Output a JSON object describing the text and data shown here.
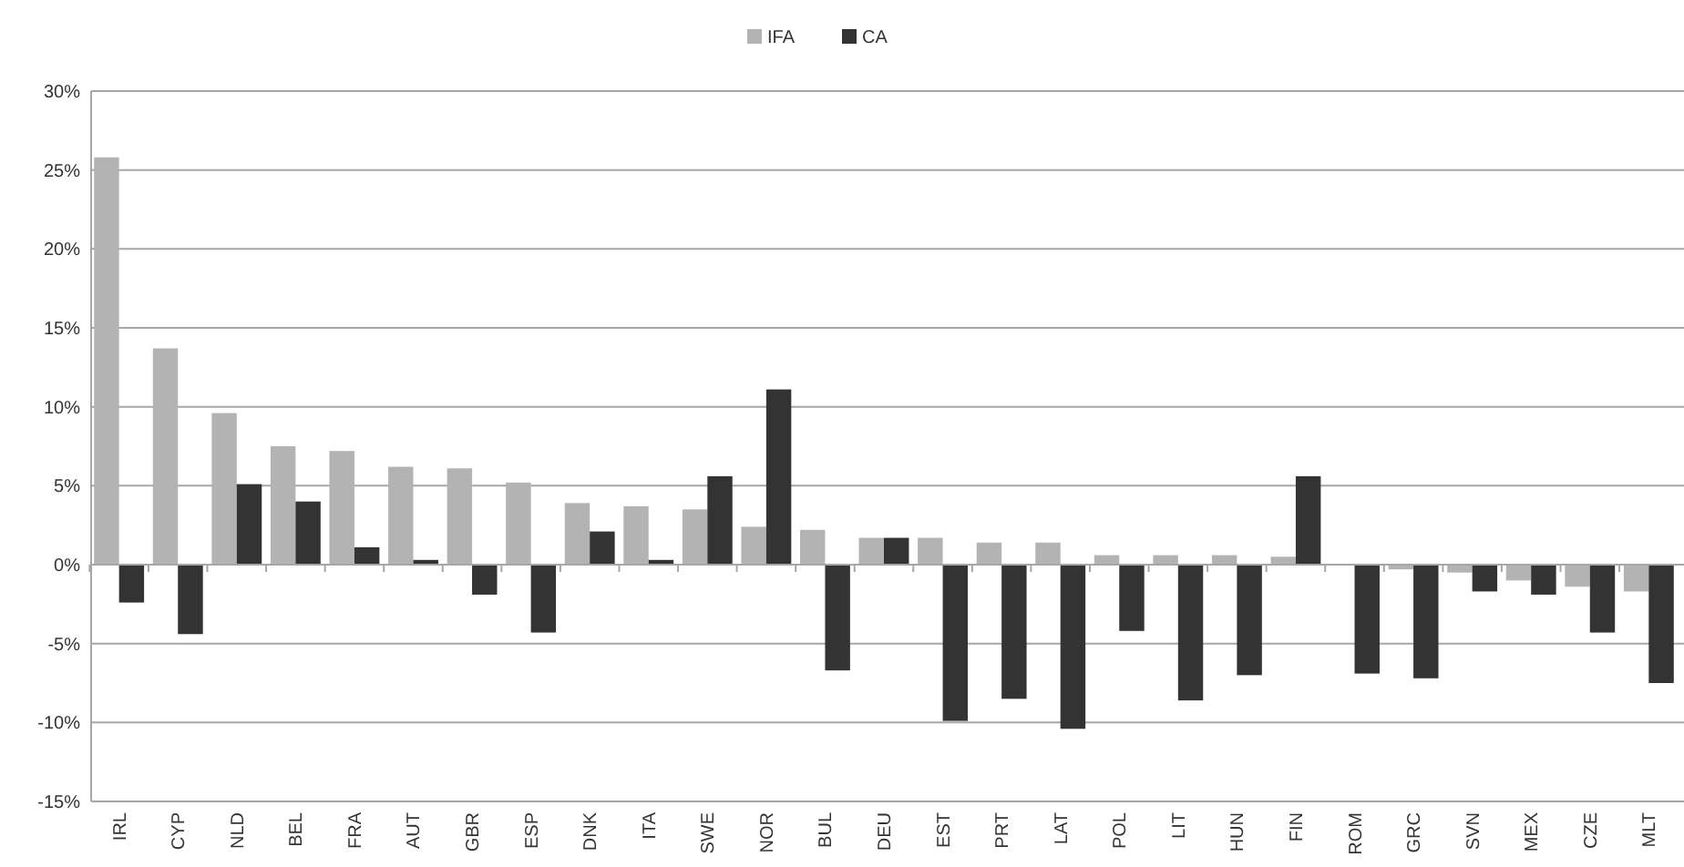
{
  "chart_data": {
    "type": "bar",
    "categories": [
      "IRL",
      "CYP",
      "NLD",
      "BEL",
      "FRA",
      "AUT",
      "GBR",
      "ESP",
      "DNK",
      "ITA",
      "SWE",
      "NOR",
      "BUL",
      "DEU",
      "EST",
      "PRT",
      "LAT",
      "POL",
      "LIT",
      "HUN",
      "FIN",
      "ROM",
      "GRC",
      "SVN",
      "MEX",
      "CZE",
      "MLT"
    ],
    "series": [
      {
        "name": "IFA",
        "color": "#b3b3b3",
        "values": [
          25.8,
          13.7,
          9.6,
          7.5,
          7.2,
          6.2,
          6.1,
          5.2,
          3.9,
          3.7,
          3.5,
          2.4,
          2.2,
          1.7,
          1.7,
          1.4,
          1.4,
          0.6,
          0.6,
          0.6,
          0.5,
          0,
          -0.3,
          -0.5,
          -1.0,
          -1.4,
          -1.7
        ]
      },
      {
        "name": "CA",
        "color": "#333333",
        "values": [
          -2.4,
          -4.4,
          5.1,
          4.0,
          1.1,
          0.3,
          -1.9,
          -4.3,
          2.1,
          0.3,
          5.6,
          11.1,
          -6.7,
          1.7,
          -9.9,
          -8.5,
          -10.4,
          -4.2,
          -8.6,
          -7.0,
          5.6,
          -6.9,
          -7.2,
          -1.7,
          -1.9,
          -4.3,
          -7.5
        ]
      }
    ],
    "ylim": [
      -15,
      30
    ],
    "yticks": [
      {
        "value": -15,
        "label": "-15%"
      },
      {
        "value": -10,
        "label": "-10%"
      },
      {
        "value": -5,
        "label": "-5%"
      },
      {
        "value": 0,
        "label": "0%"
      },
      {
        "value": 5,
        "label": "5%"
      },
      {
        "value": 10,
        "label": "10%"
      },
      {
        "value": 15,
        "label": "15%"
      },
      {
        "value": 20,
        "label": "20%"
      },
      {
        "value": 25,
        "label": "25%"
      },
      {
        "value": 30,
        "label": "30%"
      }
    ],
    "grid": "y",
    "legend": "top"
  }
}
